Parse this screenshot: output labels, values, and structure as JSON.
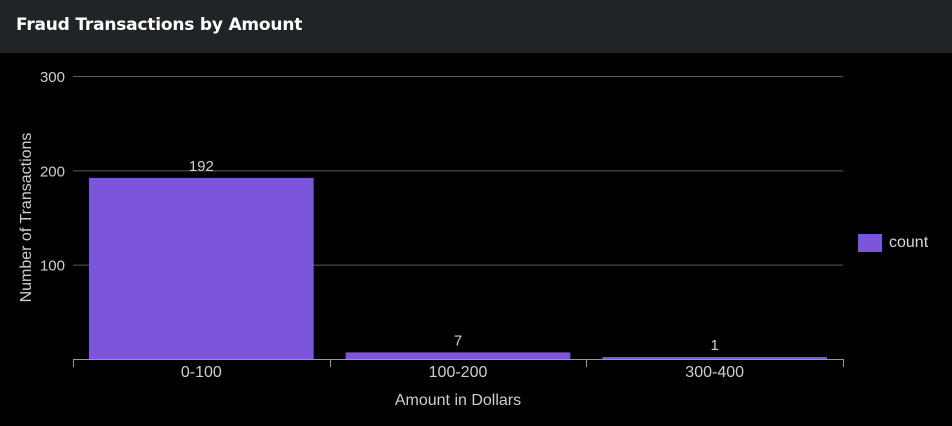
{
  "panel": {
    "title": "Fraud Transactions by Amount"
  },
  "colors": {
    "bar": "#7b56db",
    "grid": "#5a5a5a",
    "axis": "#9a9a9a",
    "text": "#cfcfcf",
    "header_bg": "#212427"
  },
  "chart_data": {
    "type": "bar",
    "title": "Fraud Transactions by Amount",
    "xlabel": "Amount in Dollars",
    "ylabel": "Number of Transactions",
    "categories": [
      "0-100",
      "100-200",
      "300-400"
    ],
    "series": [
      {
        "name": "count",
        "values": [
          192,
          7,
          1
        ]
      }
    ],
    "data_labels": [
      "192",
      "7",
      "1"
    ],
    "ylim": [
      0,
      300
    ],
    "yticks": [
      100,
      200,
      300
    ],
    "ytick_labels": [
      "100",
      "200",
      "300"
    ],
    "grid": true,
    "legend_position": "right"
  }
}
